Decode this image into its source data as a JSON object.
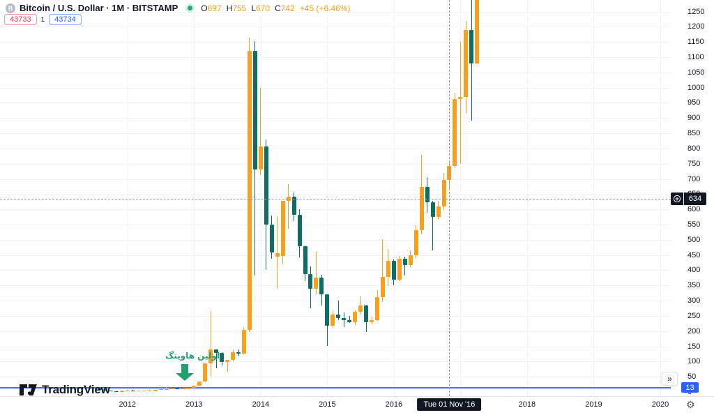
{
  "header": {
    "symbol_icon_letter": "B",
    "symbol_title": "Bitcoin / U.S. Dollar · 1M · BITSTAMP",
    "ohlc": {
      "open_label": "O",
      "open": "697",
      "high_label": "H",
      "high": "755",
      "low_label": "L",
      "low": "670",
      "close_label": "C",
      "close": "742",
      "change": "+45 (+6.46%)"
    },
    "bid": "43733",
    "spread": "1",
    "ask": "43734"
  },
  "annotation": {
    "text": "اولین هاوینگ"
  },
  "price_axis": {
    "tick_labels": [
      "1250",
      "1200",
      "1150",
      "1100",
      "1050",
      "1000",
      "950",
      "900",
      "850",
      "800",
      "750",
      "700",
      "650",
      "600",
      "550",
      "500",
      "450",
      "400",
      "350",
      "300",
      "250",
      "200",
      "150",
      "100",
      "50",
      "0"
    ],
    "crosshair_price": "634",
    "line_price": "13"
  },
  "time_axis": {
    "year_labels": [
      "2012",
      "2013",
      "2014",
      "2015",
      "2016",
      "2018",
      "2019",
      "2020"
    ],
    "crosshair_date": "Tue 01 Nov '16"
  },
  "watermark": {
    "brand": "TradingView"
  },
  "toolbar": {
    "collapse_button": "»",
    "gear_icon": "⚙"
  },
  "colors": {
    "up": "#F8A01D",
    "down": "#0F6E61",
    "accent_blue": "#2962FF",
    "accent_red": "#F23645",
    "annotation_green": "#23A06F",
    "crosshair_label_bg": "#131722",
    "grid": "#F0F3FA",
    "axis_text": "#131722",
    "status_dot_green": "#26A981"
  },
  "chart_data": {
    "type": "candlestick",
    "symbol": "Bitcoin / U.S. Dollar",
    "exchange": "BITSTAMP",
    "interval": "1M",
    "start_month": "2011-08",
    "crosshair_month": "2016-11",
    "visible_price_range": [
      0,
      1288
    ],
    "visible_time_range": [
      "2011-08",
      "2020-12"
    ],
    "grid": "on",
    "candles_ohlc": [
      [
        10.9,
        11,
        5.9,
        8.2
      ],
      [
        8.2,
        8.4,
        4.8,
        5.1
      ],
      [
        5.1,
        5.2,
        2.2,
        3.2
      ],
      [
        3.2,
        3.6,
        1.9,
        3
      ],
      [
        3,
        4.8,
        2.6,
        4.2
      ],
      [
        4.2,
        7.4,
        3.8,
        5.5
      ],
      [
        5.5,
        6.2,
        3.9,
        4.9
      ],
      [
        4.9,
        5.5,
        4.4,
        4.9
      ],
      [
        4.9,
        5.6,
        4.6,
        4.9
      ],
      [
        4.9,
        5.9,
        4.8,
        5.2
      ],
      [
        5.2,
        6.9,
        5.1,
        6.7
      ],
      [
        6.7,
        9.5,
        6.5,
        9.4
      ],
      [
        9.4,
        16.4,
        7.6,
        10.2
      ],
      [
        10.2,
        12.7,
        9.7,
        12.4
      ],
      [
        12.4,
        12.8,
        10.3,
        11.2
      ],
      [
        11.2,
        12.9,
        10.5,
        12.5
      ],
      [
        12.5,
        14,
        12.3,
        13.5
      ],
      [
        13.5,
        20.6,
        13.2,
        20.4
      ],
      [
        20.4,
        34,
        19.8,
        33.4
      ],
      [
        33.4,
        94,
        33,
        93
      ],
      [
        93,
        266,
        50,
        139.2
      ],
      [
        139.2,
        140,
        79,
        128.8
      ],
      [
        128.8,
        129.8,
        88.1,
        97.5
      ],
      [
        97.5,
        106.4,
        65.5,
        106.2
      ],
      [
        106.2,
        139,
        101,
        131
      ],
      [
        131,
        139,
        118,
        127
      ],
      [
        127,
        212,
        123,
        204
      ],
      [
        204,
        1163,
        198,
        1120
      ],
      [
        1120,
        1153,
        382,
        732
      ],
      [
        732,
        1000,
        712,
        806
      ],
      [
        806,
        830,
        400,
        550
      ],
      [
        550,
        580,
        437,
        458
      ],
      [
        445,
        578,
        338,
        457
      ],
      [
        446,
        629,
        419,
        628
      ],
      [
        628,
        683,
        536,
        641
      ],
      [
        641,
        655,
        561,
        582
      ],
      [
        582,
        600,
        442,
        478
      ],
      [
        478,
        482,
        365,
        388
      ],
      [
        388,
        412,
        275,
        338
      ],
      [
        338,
        460,
        320,
        376
      ],
      [
        376,
        384,
        285,
        320
      ],
      [
        320,
        321,
        152,
        217
      ],
      [
        217,
        268,
        210,
        254
      ],
      [
        254,
        300,
        236,
        244
      ],
      [
        244,
        261,
        213,
        236
      ],
      [
        236,
        249,
        227,
        230
      ],
      [
        230,
        268,
        219,
        263
      ],
      [
        263,
        316,
        255,
        284
      ],
      [
        284,
        286,
        198,
        230
      ],
      [
        230,
        248,
        223,
        236
      ],
      [
        236,
        334,
        234,
        311
      ],
      [
        311,
        502,
        295,
        377
      ],
      [
        377,
        469,
        348,
        430
      ],
      [
        430,
        436,
        350,
        368
      ],
      [
        368,
        447,
        365,
        437
      ],
      [
        437,
        444,
        383,
        416
      ],
      [
        416,
        466,
        410,
        448
      ],
      [
        448,
        547,
        438,
        531
      ],
      [
        531,
        780,
        518,
        673
      ],
      [
        673,
        706,
        590,
        624
      ],
      [
        624,
        628,
        465,
        575
      ],
      [
        575,
        629,
        565,
        610
      ],
      [
        610,
        720,
        598,
        697
      ],
      [
        697,
        755,
        670,
        742
      ],
      [
        742,
        982,
        735,
        963
      ],
      [
        963,
        1150,
        750,
        970
      ],
      [
        970,
        1220,
        915,
        1190
      ],
      [
        1190,
        1290,
        891,
        1080
      ],
      [
        1080,
        1360,
        1077,
        1355
      ]
    ]
  }
}
